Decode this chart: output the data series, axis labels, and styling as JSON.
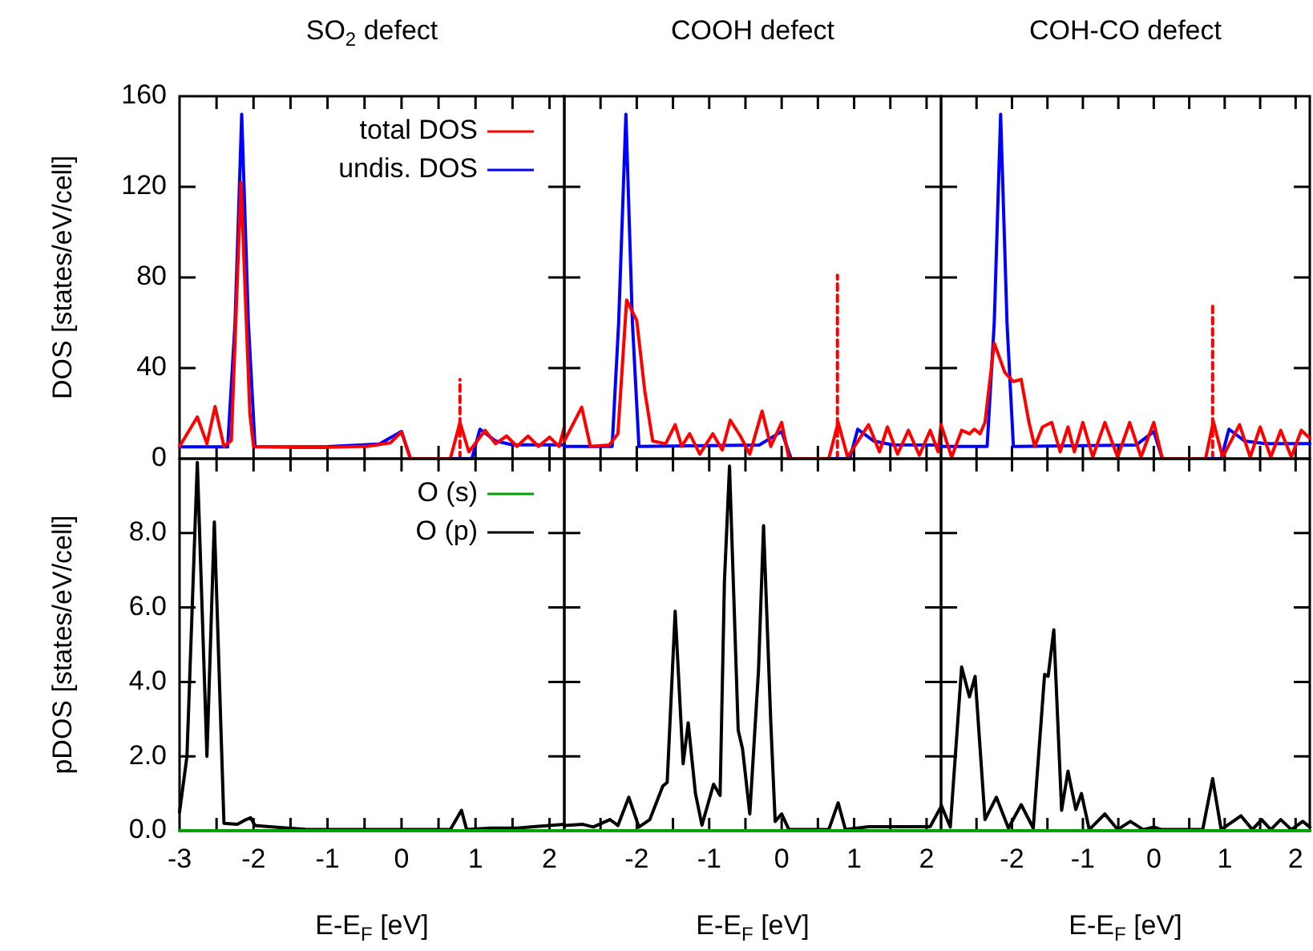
{
  "chart_data": [
    {
      "type": "line",
      "title": "SO$_{2}$ defect",
      "ylabel": "DOS [states/eV/cell]",
      "xlim": [
        -3,
        2.2
      ],
      "ylim": [
        0,
        160
      ],
      "xticks": [
        -3,
        {
          "value": -2.5,
          "label": null
        },
        -2,
        {
          "value": -1.5,
          "label": null
        },
        -1,
        {
          "value": -0.5,
          "label": null
        },
        0,
        {
          "value": 0.5,
          "label": null
        },
        1,
        {
          "value": 1.5,
          "label": null
        },
        2
      ],
      "yticks": [
        0,
        40,
        80,
        120,
        160
      ],
      "tick_labels": "y",
      "legend": "top right",
      "series": [
        {
          "name": "total DOS",
          "color": "#ff0000",
          "x": [
            -3,
            -2.76,
            -2.63,
            -2.52,
            -2.4,
            -2.3,
            -2.17,
            -2.05,
            -2.0,
            -1.5,
            -1.0,
            -0.45,
            -0.15,
            0,
            0.12,
            0.66,
            0.79,
            0.91,
            1.13,
            1.27,
            1.42,
            1.56,
            1.71,
            1.85,
            2.0,
            2.13,
            2.2
          ],
          "values": [
            5.4,
            18.4,
            6.6,
            23,
            5.4,
            8,
            122,
            20,
            5.4,
            5,
            5,
            5.5,
            7,
            11.8,
            0,
            0,
            16,
            3,
            12.5,
            6.6,
            10,
            5.4,
            10,
            5.4,
            9.5,
            5.4,
            14
          ]
        },
        {
          "name": "undis. DOS",
          "color": "#0000ff",
          "x": [
            -3,
            -2.35,
            -2.25,
            -2.16,
            -2.07,
            -1.98,
            -1.0,
            -0.3,
            0,
            0.12,
            0.95,
            1.06,
            1.27,
            1.5,
            2.2
          ],
          "values": [
            5.2,
            5.2,
            60,
            152,
            60,
            5.2,
            5.3,
            6.5,
            12,
            0,
            0,
            13,
            7.8,
            6.1,
            6.1
          ]
        },
        {
          "color": "#ff0000",
          "line_style": "dashed",
          "x": [
            0.79,
            0.79
          ],
          "values": [
            0,
            35
          ]
        }
      ]
    },
    {
      "type": "line",
      "title": "COOH defect",
      "xlim": [
        -3,
        2.2
      ],
      "ylim": [
        0,
        160
      ],
      "xticks": [
        -3,
        {
          "value": -2.5,
          "label": null
        },
        -2,
        {
          "value": -1.5,
          "label": null
        },
        -1,
        {
          "value": -0.5,
          "label": null
        },
        0,
        {
          "value": 0.5,
          "label": null
        },
        1,
        {
          "value": 1.5,
          "label": null
        },
        2
      ],
      "yticks": [
        0,
        40,
        80,
        120,
        160
      ],
      "tick_labels": false,
      "series": [
        {
          "color": "#ff0000",
          "x": [
            -3,
            -2.76,
            -2.64,
            -2.38,
            -2.26,
            -2.14,
            -2.0,
            -1.89,
            -1.78,
            -1.6,
            -1.47,
            -1.38,
            -1.27,
            -1.13,
            -0.95,
            -0.82,
            -0.71,
            -0.57,
            -0.44,
            -0.27,
            -0.15,
            0,
            0.1,
            0.65,
            0.78,
            0.91,
            1.2,
            1.35,
            1.46,
            1.6,
            1.75,
            1.9,
            2.05,
            2.16,
            2.2
          ],
          "values": [
            7.8,
            22.7,
            5.4,
            6,
            11,
            70,
            61,
            30,
            7.8,
            6.6,
            15,
            5.4,
            11,
            2,
            11,
            3.8,
            17,
            10,
            2,
            21,
            5.4,
            16,
            0,
            0,
            16,
            0.7,
            15,
            3,
            14,
            2,
            12.5,
            1.5,
            12.5,
            3,
            15
          ]
        },
        {
          "color": "#0000ff",
          "x": [
            -3,
            -2.34,
            -2.25,
            -2.15,
            -2.06,
            -1.97,
            -0.31,
            0,
            0.13,
            0.94,
            1.05,
            1.27,
            1.53,
            2.2
          ],
          "values": [
            5.4,
            5.4,
            60,
            152,
            60,
            5.4,
            6,
            12,
            0,
            0,
            13,
            7.8,
            6.1,
            6
          ]
        },
        {
          "color": "#ff0000",
          "line_style": "dashed",
          "x": [
            0.77,
            0.77
          ],
          "values": [
            0,
            81
          ]
        }
      ]
    },
    {
      "type": "line",
      "title": "COH-CO defect",
      "xlim": [
        -3,
        2.2
      ],
      "ylim": [
        0,
        160
      ],
      "xticks": [
        -3,
        {
          "value": -2.5,
          "label": null
        },
        -2,
        {
          "value": -1.5,
          "label": null
        },
        -1,
        {
          "value": -0.5,
          "label": null
        },
        0,
        {
          "value": 0.5,
          "label": null
        },
        1,
        {
          "value": 1.5,
          "label": null
        },
        2
      ],
      "yticks": [
        0,
        40,
        80,
        120,
        160
      ],
      "tick_labels": false,
      "series": [
        {
          "color": "#ff0000",
          "x": [
            -3,
            -2.85,
            -2.71,
            -2.6,
            -2.53,
            -2.45,
            -2.38,
            -2.25,
            -2.1,
            -1.98,
            -1.87,
            -1.76,
            -1.68,
            -1.57,
            -1.44,
            -1.32,
            -1.21,
            -1.12,
            -1.0,
            -0.86,
            -0.69,
            -0.51,
            -0.34,
            -0.18,
            0,
            0.12,
            0.73,
            0.84,
            0.97,
            1.21,
            1.36,
            1.5,
            1.65,
            1.79,
            1.94,
            2.08,
            2.2
          ],
          "values": [
            15,
            0.7,
            12.5,
            11,
            13,
            11,
            16,
            51,
            38,
            34,
            35,
            16,
            5.4,
            14,
            16,
            3,
            14,
            3,
            16,
            0.7,
            16,
            0.7,
            16,
            0.7,
            16,
            0,
            0,
            16.5,
            0.7,
            15,
            0.7,
            14,
            0.7,
            12.5,
            0.7,
            12.5,
            9
          ]
        },
        {
          "color": "#0000ff",
          "x": [
            -3,
            -2.35,
            -2.25,
            -2.16,
            -2.07,
            -1.98,
            -0.25,
            0,
            0.12,
            0.95,
            1.06,
            1.28,
            1.57,
            2.2
          ],
          "values": [
            5.4,
            5.4,
            60,
            152,
            60,
            5.4,
            6,
            12,
            0,
            0,
            13,
            7.8,
            6.6,
            6.6
          ]
        },
        {
          "color": "#ff0000",
          "line_style": "dashed",
          "x": [
            0.83,
            0.83
          ],
          "values": [
            0,
            69
          ]
        }
      ]
    },
    {
      "type": "line",
      "xlabel": "E-E$_{F}$ [eV]",
      "ylabel": "pDOS [states/eV/cell]",
      "xlim": [
        -3,
        2.2
      ],
      "ylim": [
        0,
        10
      ],
      "xticks": [
        -3,
        {
          "value": -2.5,
          "label": null
        },
        -2,
        {
          "value": -1.5,
          "label": null
        },
        -1,
        {
          "value": -0.5,
          "label": null
        },
        0,
        {
          "value": 0.5,
          "label": null
        },
        1,
        {
          "value": 1.5,
          "label": null
        },
        2
      ],
      "yticks": [
        {
          "value": 0,
          "label": "0.0"
        },
        {
          "value": 2,
          "label": "2.0"
        },
        {
          "value": 4,
          "label": "4.0"
        },
        {
          "value": 6,
          "label": "6.0"
        },
        {
          "value": 8,
          "label": "8.0"
        }
      ],
      "legend": "top right",
      "series": [
        {
          "name": "O (s)",
          "color": "#00a000",
          "x": [
            -3,
            -2.2,
            -1.2,
            -0.2,
            0.8,
            1.8,
            2.2
          ],
          "values": [
            0,
            0,
            0,
            0,
            0,
            0,
            0
          ]
        },
        {
          "name": "O (p)",
          "color": "#000000",
          "x": [
            -3,
            -2.9,
            -2.76,
            -2.63,
            -2.53,
            -2.4,
            -2.22,
            -2.1,
            -2.04,
            -1.98,
            -1.75,
            -1.3,
            -0.45,
            0.66,
            0.81,
            0.88,
            1.2,
            1.56,
            1.78,
            2.0,
            2.2
          ],
          "values": [
            0.5,
            2,
            9.9,
            2,
            8.3,
            0.2,
            0.17,
            0.3,
            0.35,
            0.14,
            0.1,
            0.04,
            0.03,
            0.03,
            0.55,
            0.03,
            0.07,
            0.07,
            0.11,
            0.14,
            0.17
          ]
        }
      ]
    },
    {
      "type": "line",
      "xlabel": "E-E$_{F}$ [eV]",
      "xlim": [
        -3,
        2.2
      ],
      "ylim": [
        0,
        10
      ],
      "xticks": [
        {
          "value": -3,
          "label": null
        },
        {
          "value": -2.5,
          "label": null
        },
        -2,
        {
          "value": -1.5,
          "label": null
        },
        -1,
        {
          "value": -0.5,
          "label": null
        },
        0,
        {
          "value": 0.5,
          "label": null
        },
        1,
        {
          "value": 1.5,
          "label": null
        },
        2
      ],
      "yticks": [
        0,
        2,
        4,
        6,
        8
      ],
      "tick_labels": "x",
      "series": [
        {
          "color": "#00a000",
          "x": [
            -3,
            -2.2,
            -1.2,
            -0.2,
            0.8,
            1.8,
            2.2
          ],
          "values": [
            0,
            0,
            0,
            0,
            0,
            0,
            0
          ]
        },
        {
          "color": "#000000",
          "x": [
            -3,
            -2.74,
            -2.6,
            -2.37,
            -2.26,
            -2.11,
            -1.97,
            -1.82,
            -1.64,
            -1.58,
            -1.47,
            -1.36,
            -1.29,
            -1.19,
            -1.1,
            -0.94,
            -0.85,
            -0.79,
            -0.72,
            -0.6,
            -0.54,
            -0.44,
            -0.32,
            -0.25,
            -0.15,
            -0.09,
            0,
            0.1,
            0.65,
            0.78,
            0.88,
            1.2,
            1.46,
            1.75,
            2.05,
            2.2
          ],
          "values": [
            0.14,
            0.17,
            0.1,
            0.3,
            0.14,
            0.9,
            0.1,
            0.3,
            1.2,
            1.3,
            5.9,
            1.8,
            2.9,
            1.0,
            0.15,
            1.25,
            0.95,
            6.7,
            9.8,
            2.7,
            2.2,
            0.45,
            4.3,
            8.2,
            2.9,
            0.25,
            0.45,
            0.03,
            0.03,
            0.75,
            0.03,
            0.11,
            0.11,
            0.11,
            0.11,
            0.65
          ]
        }
      ]
    },
    {
      "type": "line",
      "xlabel": "E-E$_{F}$ [eV]",
      "xlim": [
        -3,
        2.2
      ],
      "ylim": [
        0,
        10
      ],
      "xticks": [
        {
          "value": -3,
          "label": null
        },
        {
          "value": -2.5,
          "label": null
        },
        -2,
        {
          "value": -1.5,
          "label": null
        },
        -1,
        {
          "value": -0.5,
          "label": null
        },
        0,
        {
          "value": 0.5,
          "label": null
        },
        1,
        {
          "value": 1.5,
          "label": null
        },
        2
      ],
      "yticks": [
        0,
        2,
        4,
        6,
        8
      ],
      "tick_labels": "x",
      "series": [
        {
          "color": "#00a000",
          "x": [
            -3,
            -2.2,
            -1.2,
            -0.2,
            0.8,
            1.8,
            2.2
          ],
          "values": [
            0,
            0,
            0,
            0,
            0,
            0,
            0
          ]
        },
        {
          "color": "#000000",
          "x": [
            -3,
            -2.87,
            -2.71,
            -2.6,
            -2.52,
            -2.38,
            -2.22,
            -2.05,
            -1.87,
            -1.7,
            -1.54,
            -1.49,
            -1.41,
            -1.3,
            -1.21,
            -1.1,
            -1.02,
            -0.91,
            -0.69,
            -0.51,
            -0.33,
            -0.15,
            0,
            0.11,
            0.69,
            0.83,
            0.95,
            1.23,
            1.39,
            1.52,
            1.65,
            1.79,
            1.94,
            2.1,
            2.2
          ],
          "values": [
            0.7,
            0.1,
            4.4,
            3.6,
            4.15,
            0.3,
            0.9,
            0.07,
            0.7,
            0.07,
            4.2,
            4.15,
            5.4,
            0.55,
            1.6,
            0.57,
            1.0,
            0.03,
            0.45,
            0.03,
            0.25,
            0.03,
            0.1,
            0.03,
            0.03,
            1.4,
            0.03,
            0.4,
            0.03,
            0.3,
            0.03,
            0.3,
            0.03,
            0.25,
            0.1
          ]
        }
      ]
    }
  ]
}
